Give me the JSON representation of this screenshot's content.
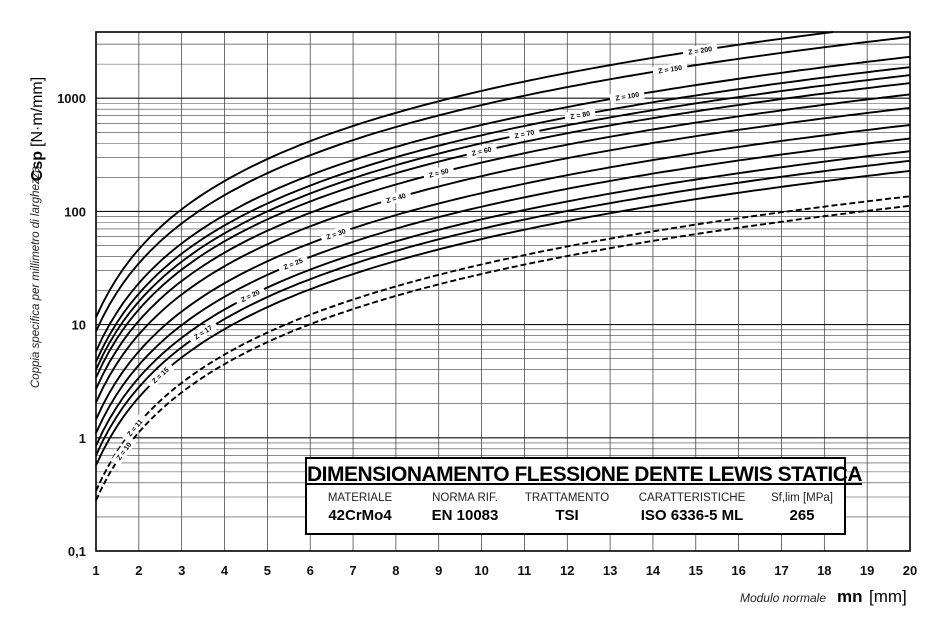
{
  "chart_data": {
    "type": "line",
    "y_scale": "log",
    "xlim": [
      1,
      20
    ],
    "ylim": [
      0.1,
      4000
    ],
    "x_ticks": [
      1,
      2,
      3,
      4,
      5,
      6,
      7,
      8,
      9,
      10,
      11,
      12,
      13,
      14,
      15,
      16,
      17,
      18,
      19,
      20
    ],
    "x_tick_labels": [
      "1",
      "2",
      "3",
      "4",
      "5",
      "6",
      "7",
      "8",
      "9",
      "10",
      "11",
      "12",
      "13",
      "14",
      "15",
      "16",
      "17",
      "18",
      "19",
      "20"
    ],
    "y_tick_labels": [
      "0,1",
      "1",
      "10",
      "100",
      "1000"
    ],
    "y_tick_values": [
      0.1,
      1,
      10,
      100,
      1000
    ],
    "ylabel_main": "Csp",
    "ylabel_unit": "[N·m/mm]",
    "ylabel_desc": "Coppia specifica per millimetro di larghezza",
    "xlabel_desc": "Modulo normale",
    "xlabel_main": "mn",
    "xlabel_unit": "[mm]",
    "grid": true,
    "series": [
      {
        "name": "Z = 10",
        "style": "dashed",
        "values_at_mn1": 0.28
      },
      {
        "name": "Z = 11",
        "style": "dashed",
        "values_at_mn1": 0.34
      },
      {
        "name": "Z = 15",
        "style": "solid",
        "values_at_mn1": 0.57
      },
      {
        "name": "Z = 17",
        "style": "solid",
        "values_at_mn1": 0.7
      },
      {
        "name": "Z = 20",
        "style": "solid",
        "values_at_mn1": 0.85
      },
      {
        "name": "Z = 25",
        "style": "solid",
        "values_at_mn1": 1.1
      },
      {
        "name": "Z = 30",
        "style": "solid",
        "values_at_mn1": 1.45
      },
      {
        "name": "Z = 40",
        "style": "solid",
        "values_at_mn1": 2.05
      },
      {
        "name": "Z = 50",
        "style": "solid",
        "values_at_mn1": 2.7
      },
      {
        "name": "Z = 60",
        "style": "solid",
        "values_at_mn1": 3.4
      },
      {
        "name": "Z = 70",
        "style": "solid",
        "values_at_mn1": 4.0
      },
      {
        "name": "Z = 80",
        "style": "solid",
        "values_at_mn1": 4.7
      },
      {
        "name": "Z = 100",
        "style": "solid",
        "values_at_mn1": 5.8
      },
      {
        "name": "Z = 150",
        "style": "solid",
        "values_at_mn1": 8.7
      },
      {
        "name": "Z = 200",
        "style": "solid",
        "values_at_mn1": 11.6
      }
    ],
    "curve_exponent": 2.0
  },
  "info_box": {
    "title": "DIMENSIONAMENTO FLESSIONE DENTE LEWIS STATICA",
    "columns": [
      {
        "header": "MATERIALE",
        "value": "42CrMo4"
      },
      {
        "header": "NORMA RIF.",
        "value": "EN 10083"
      },
      {
        "header": "TRATTAMENTO",
        "value": "TSI"
      },
      {
        "header": "CARATTERISTICHE",
        "value": "ISO 6336-5 ML"
      },
      {
        "header": "Sf,lim [MPa]",
        "value": "265"
      }
    ]
  }
}
